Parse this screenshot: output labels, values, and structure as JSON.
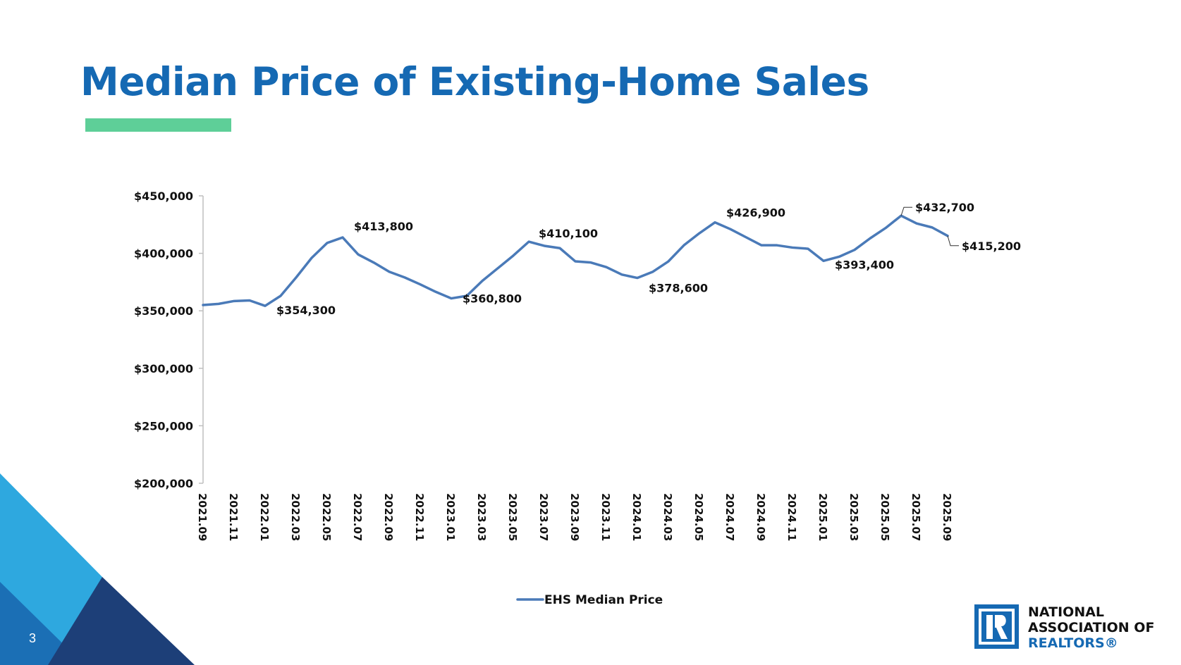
{
  "title": "Median Price of Existing-Home Sales",
  "page_number": "3",
  "colors": {
    "title": "#1569b3",
    "accent_bar": "#5ecf98",
    "line": "#4a7ab8"
  },
  "logo": {
    "line1": "NATIONAL",
    "line2": "ASSOCIATION OF",
    "line3": "REALTORS®",
    "mark": "realtor-r-logo"
  },
  "chart_data": {
    "type": "line",
    "title": "",
    "xlabel": "",
    "ylabel": "",
    "ylim": [
      200000,
      450000
    ],
    "yticks": [
      200000,
      250000,
      300000,
      350000,
      400000,
      450000
    ],
    "ytick_labels": [
      "$200,000",
      "$250,000",
      "$300,000",
      "$350,000",
      "$400,000",
      "$450,000"
    ],
    "xtick_labels": [
      "2021.09",
      "2021.11",
      "2022.01",
      "2022.03",
      "2022.05",
      "2022.07",
      "2022.09",
      "2022.11",
      "2023.01",
      "2023.03",
      "2023.05",
      "2023.07",
      "2023.09",
      "2023.11",
      "2024.01",
      "2024.03",
      "2024.05",
      "2024.07",
      "2024.09",
      "2024.11",
      "2025.01",
      "2025.03",
      "2025.05",
      "2025.07",
      "2025.09"
    ],
    "grid": false,
    "legend_position": "bottom-center",
    "x": [
      "2021.09",
      "2021.10",
      "2021.11",
      "2021.12",
      "2022.01",
      "2022.02",
      "2022.03",
      "2022.04",
      "2022.05",
      "2022.06",
      "2022.07",
      "2022.08",
      "2022.09",
      "2022.10",
      "2022.11",
      "2022.12",
      "2023.01",
      "2023.02",
      "2023.03",
      "2023.04",
      "2023.05",
      "2023.06",
      "2023.07",
      "2023.08",
      "2023.09",
      "2023.10",
      "2023.11",
      "2023.12",
      "2024.01",
      "2024.02",
      "2024.03",
      "2024.04",
      "2024.05",
      "2024.06",
      "2024.07",
      "2024.08",
      "2024.09",
      "2024.10",
      "2024.11",
      "2024.12",
      "2025.01",
      "2025.02",
      "2025.03",
      "2025.04",
      "2025.05",
      "2025.06",
      "2025.07",
      "2025.08",
      "2025.09"
    ],
    "series": [
      {
        "name": "EHS Median Price",
        "values": [
          355000,
          356000,
          358500,
          359000,
          354300,
          363000,
          379000,
          396000,
          409000,
          413800,
          399000,
          392000,
          384000,
          379000,
          373000,
          366500,
          360800,
          363000,
          376000,
          387000,
          398000,
          410100,
          406500,
          404500,
          393000,
          392000,
          388000,
          381500,
          378600,
          384000,
          393000,
          407000,
          417500,
          426900,
          421000,
          414000,
          407000,
          407000,
          405000,
          404000,
          393400,
          397000,
          403000,
          413000,
          422000,
          432700,
          426000,
          422500,
          415200
        ]
      }
    ],
    "annotations": [
      {
        "x": "2022.01",
        "label": "$354,300"
      },
      {
        "x": "2022.06",
        "label": "$413,800"
      },
      {
        "x": "2023.01",
        "label": "$360,800"
      },
      {
        "x": "2023.06",
        "label": "$410,100"
      },
      {
        "x": "2024.01",
        "label": "$378,600"
      },
      {
        "x": "2024.06",
        "label": "$426,900"
      },
      {
        "x": "2025.01",
        "label": "$393,400"
      },
      {
        "x": "2025.06",
        "label": "$432,700"
      },
      {
        "x": "2025.09",
        "label": "$415,200"
      }
    ]
  }
}
